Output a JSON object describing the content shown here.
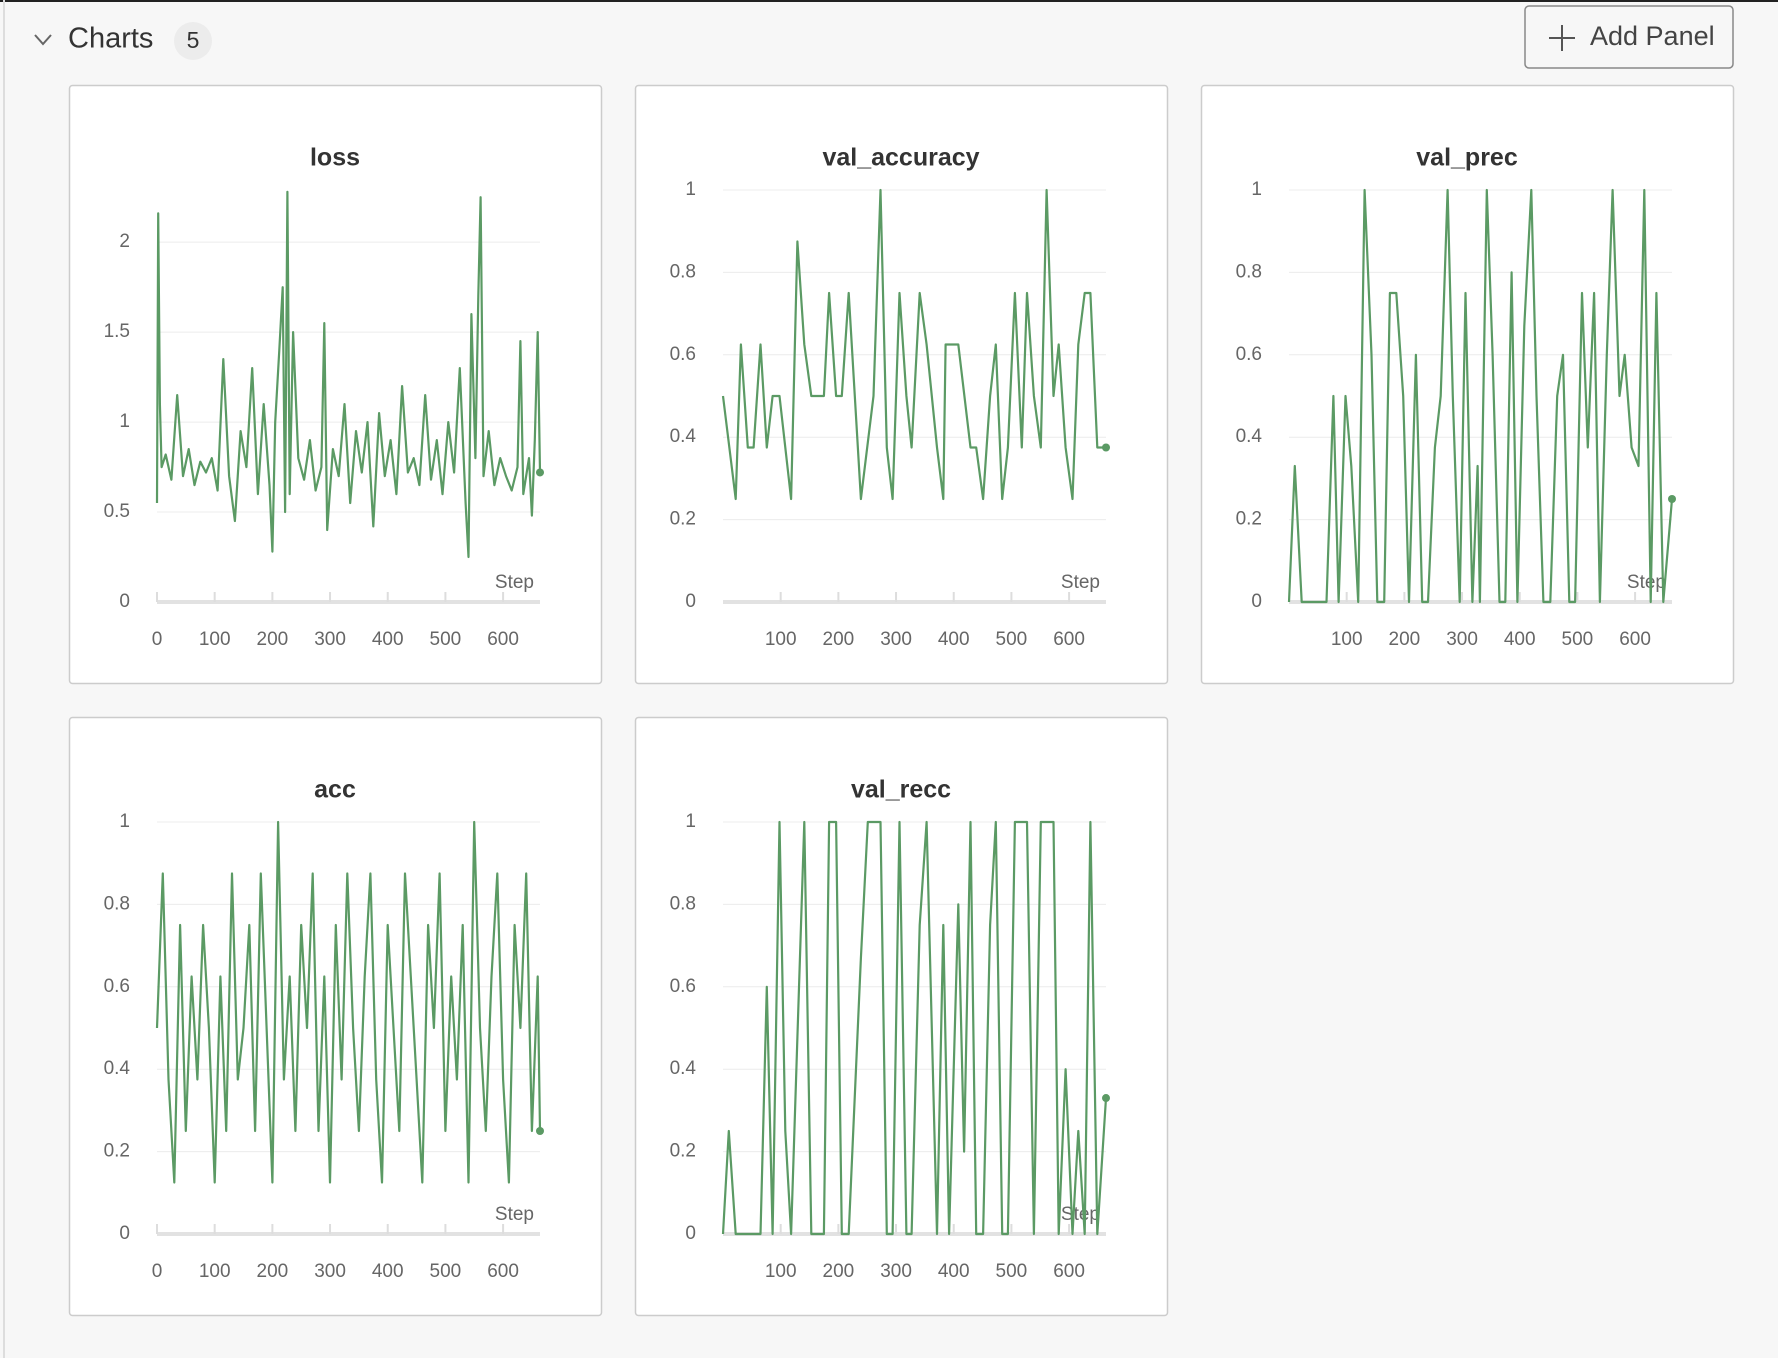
{
  "header": {
    "title": "Charts",
    "count": "5",
    "button": "Add Panel"
  },
  "chart_data": [
    {
      "type": "line",
      "title": "loss",
      "xlabel": "Step",
      "color": "#5b9a64",
      "xlim": [
        0,
        664
      ],
      "xticks": [
        0,
        100,
        200,
        300,
        400,
        500,
        600
      ],
      "ylim": [
        0,
        2.29
      ],
      "yticks": [
        0,
        0.5,
        1,
        1.5,
        2
      ],
      "grid": true,
      "x": [
        0,
        2,
        5,
        8,
        15,
        25,
        35,
        45,
        55,
        65,
        75,
        85,
        95,
        105,
        115,
        125,
        135,
        145,
        155,
        165,
        175,
        185,
        195,
        200,
        205,
        212,
        218,
        222,
        226,
        230,
        236,
        245,
        255,
        265,
        275,
        285,
        290,
        295,
        305,
        315,
        325,
        335,
        345,
        355,
        365,
        375,
        385,
        395,
        405,
        415,
        425,
        435,
        445,
        455,
        465,
        475,
        485,
        495,
        505,
        515,
        525,
        535,
        540,
        545,
        552,
        557,
        561,
        566,
        575,
        585,
        595,
        605,
        615,
        625,
        630,
        635,
        645,
        650,
        655,
        660,
        664
      ],
      "values": [
        0.55,
        2.16,
        1.1,
        0.75,
        0.82,
        0.68,
        1.15,
        0.7,
        0.85,
        0.65,
        0.78,
        0.72,
        0.8,
        0.62,
        1.35,
        0.7,
        0.45,
        0.95,
        0.75,
        1.3,
        0.6,
        1.1,
        0.65,
        0.28,
        1.0,
        1.4,
        1.75,
        0.5,
        2.28,
        0.6,
        1.5,
        0.8,
        0.68,
        0.9,
        0.62,
        0.75,
        1.55,
        0.4,
        0.85,
        0.7,
        1.1,
        0.55,
        0.95,
        0.72,
        1.0,
        0.42,
        1.05,
        0.7,
        0.9,
        0.6,
        1.2,
        0.72,
        0.8,
        0.65,
        1.15,
        0.68,
        0.9,
        0.6,
        1.0,
        0.72,
        1.3,
        0.55,
        0.25,
        1.6,
        0.8,
        1.7,
        2.25,
        0.7,
        0.95,
        0.65,
        0.8,
        0.7,
        0.62,
        0.75,
        1.45,
        0.6,
        0.8,
        0.48,
        0.9,
        1.5,
        0.72
      ]
    },
    {
      "type": "line",
      "title": "val_accuracy",
      "xlabel": "Step",
      "color": "#5b9a64",
      "xlim": [
        0,
        664
      ],
      "xticks": [
        100,
        200,
        300,
        400,
        500,
        600
      ],
      "ylim": [
        0,
        1
      ],
      "yticks": [
        0,
        0.2,
        0.4,
        0.6,
        0.8,
        1
      ],
      "grid": true,
      "x": [
        0,
        22,
        31,
        43,
        53,
        65,
        76,
        86,
        98,
        118,
        129,
        141,
        153,
        175,
        184,
        196,
        206,
        218,
        239,
        261,
        273,
        284,
        294,
        306,
        318,
        327,
        341,
        353,
        371,
        382,
        386,
        408,
        429,
        439,
        451,
        463,
        473,
        484,
        494,
        506,
        518,
        527,
        539,
        551,
        561,
        573,
        582,
        594,
        606,
        616,
        627,
        637,
        649,
        664
      ],
      "values": [
        0.5,
        0.25,
        0.625,
        0.375,
        0.375,
        0.625,
        0.375,
        0.5,
        0.5,
        0.25,
        0.875,
        0.625,
        0.5,
        0.5,
        0.75,
        0.5,
        0.5,
        0.75,
        0.25,
        0.5,
        1,
        0.375,
        0.25,
        0.75,
        0.5,
        0.375,
        0.75,
        0.625,
        0.375,
        0.25,
        0.625,
        0.625,
        0.375,
        0.375,
        0.25,
        0.5,
        0.625,
        0.25,
        0.375,
        0.75,
        0.375,
        0.75,
        0.5,
        0.375,
        1,
        0.5,
        0.625,
        0.375,
        0.25,
        0.625,
        0.75,
        0.75,
        0.375,
        0.375
      ]
    },
    {
      "type": "line",
      "title": "val_prec",
      "xlabel": "Step",
      "color": "#5b9a64",
      "xlim": [
        0,
        664
      ],
      "xticks": [
        100,
        200,
        300,
        400,
        500,
        600
      ],
      "ylim": [
        0,
        1
      ],
      "yticks": [
        0,
        0.2,
        0.4,
        0.6,
        0.8,
        1
      ],
      "grid": true,
      "x": [
        0,
        10,
        22,
        65,
        77,
        86,
        98,
        108,
        120,
        131,
        143,
        153,
        165,
        175,
        186,
        198,
        208,
        220,
        231,
        241,
        253,
        263,
        275,
        284,
        296,
        306,
        318,
        327,
        331,
        343,
        353,
        365,
        375,
        386,
        396,
        408,
        420,
        429,
        441,
        453,
        465,
        475,
        486,
        496,
        508,
        518,
        529,
        539,
        551,
        561,
        573,
        582,
        594,
        606,
        616,
        627,
        637,
        649,
        664
      ],
      "values": [
        0,
        0.33,
        0,
        0,
        0.5,
        0,
        0.5,
        0.33,
        0,
        1,
        0.6,
        0,
        0,
        0.75,
        0.75,
        0.5,
        0,
        0.6,
        0,
        0,
        0.375,
        0.5,
        1,
        0.5,
        0,
        0.75,
        0,
        0.33,
        0,
        1,
        0.6,
        0,
        0,
        0.8,
        0,
        0.67,
        1,
        0.5,
        0,
        0,
        0.5,
        0.6,
        0,
        0,
        0.75,
        0.375,
        0.75,
        0,
        0.6,
        1,
        0.5,
        0.6,
        0.375,
        0.33,
        1,
        0,
        0.75,
        0,
        0.25
      ]
    },
    {
      "type": "line",
      "title": "acc",
      "xlabel": "Step",
      "color": "#5b9a64",
      "xlim": [
        0,
        664
      ],
      "xticks": [
        0,
        100,
        200,
        300,
        400,
        500,
        600
      ],
      "ylim": [
        0,
        1
      ],
      "yticks": [
        0,
        0.2,
        0.4,
        0.6,
        0.8,
        1
      ],
      "grid": true,
      "x": [
        0,
        10,
        20,
        30,
        40,
        50,
        60,
        70,
        80,
        90,
        100,
        110,
        120,
        130,
        140,
        150,
        160,
        170,
        180,
        190,
        200,
        210,
        220,
        230,
        240,
        250,
        260,
        270,
        280,
        290,
        300,
        310,
        320,
        330,
        340,
        350,
        360,
        370,
        380,
        390,
        400,
        410,
        420,
        430,
        440,
        450,
        460,
        470,
        480,
        490,
        500,
        510,
        520,
        530,
        540,
        550,
        560,
        570,
        580,
        590,
        600,
        610,
        620,
        630,
        640,
        650,
        660,
        664
      ],
      "values": [
        0.5,
        0.875,
        0.375,
        0.125,
        0.75,
        0.25,
        0.625,
        0.375,
        0.75,
        0.5,
        0.125,
        0.625,
        0.25,
        0.875,
        0.375,
        0.5,
        0.75,
        0.25,
        0.875,
        0.5,
        0.125,
        1,
        0.375,
        0.625,
        0.25,
        0.75,
        0.5,
        0.875,
        0.25,
        0.625,
        0.125,
        0.75,
        0.375,
        0.875,
        0.5,
        0.25,
        0.625,
        0.875,
        0.375,
        0.125,
        0.75,
        0.5,
        0.25,
        0.875,
        0.625,
        0.375,
        0.125,
        0.75,
        0.5,
        0.875,
        0.25,
        0.625,
        0.375,
        0.75,
        0.125,
        1,
        0.5,
        0.25,
        0.625,
        0.875,
        0.375,
        0.125,
        0.75,
        0.5,
        0.875,
        0.25,
        0.625,
        0.25
      ]
    },
    {
      "type": "line",
      "title": "val_recc",
      "xlabel": "Step",
      "color": "#5b9a64",
      "xlim": [
        0,
        664
      ],
      "xticks": [
        100,
        200,
        300,
        400,
        500,
        600
      ],
      "ylim": [
        0,
        1
      ],
      "yticks": [
        0,
        0.2,
        0.4,
        0.6,
        0.8,
        1
      ],
      "grid": true,
      "x": [
        0,
        10,
        22,
        65,
        76,
        86,
        98,
        108,
        118,
        141,
        153,
        175,
        184,
        196,
        206,
        218,
        239,
        251,
        273,
        284,
        294,
        306,
        318,
        327,
        341,
        353,
        371,
        382,
        392,
        408,
        418,
        429,
        439,
        451,
        463,
        473,
        484,
        494,
        506,
        527,
        539,
        551,
        573,
        582,
        594,
        606,
        616,
        627,
        637,
        649,
        664
      ],
      "values": [
        0,
        0.25,
        0,
        0,
        0.6,
        0,
        1,
        0.25,
        0,
        1,
        0,
        0,
        1,
        1,
        0,
        0,
        0.67,
        1,
        1,
        0,
        0,
        1,
        0,
        0,
        0.75,
        1,
        0,
        0.75,
        0,
        0.8,
        0.2,
        1,
        0,
        0,
        0.75,
        1,
        0,
        0,
        1,
        1,
        0,
        1,
        1,
        0,
        0.4,
        0,
        0.25,
        0,
        1,
        0,
        0.33
      ]
    }
  ]
}
